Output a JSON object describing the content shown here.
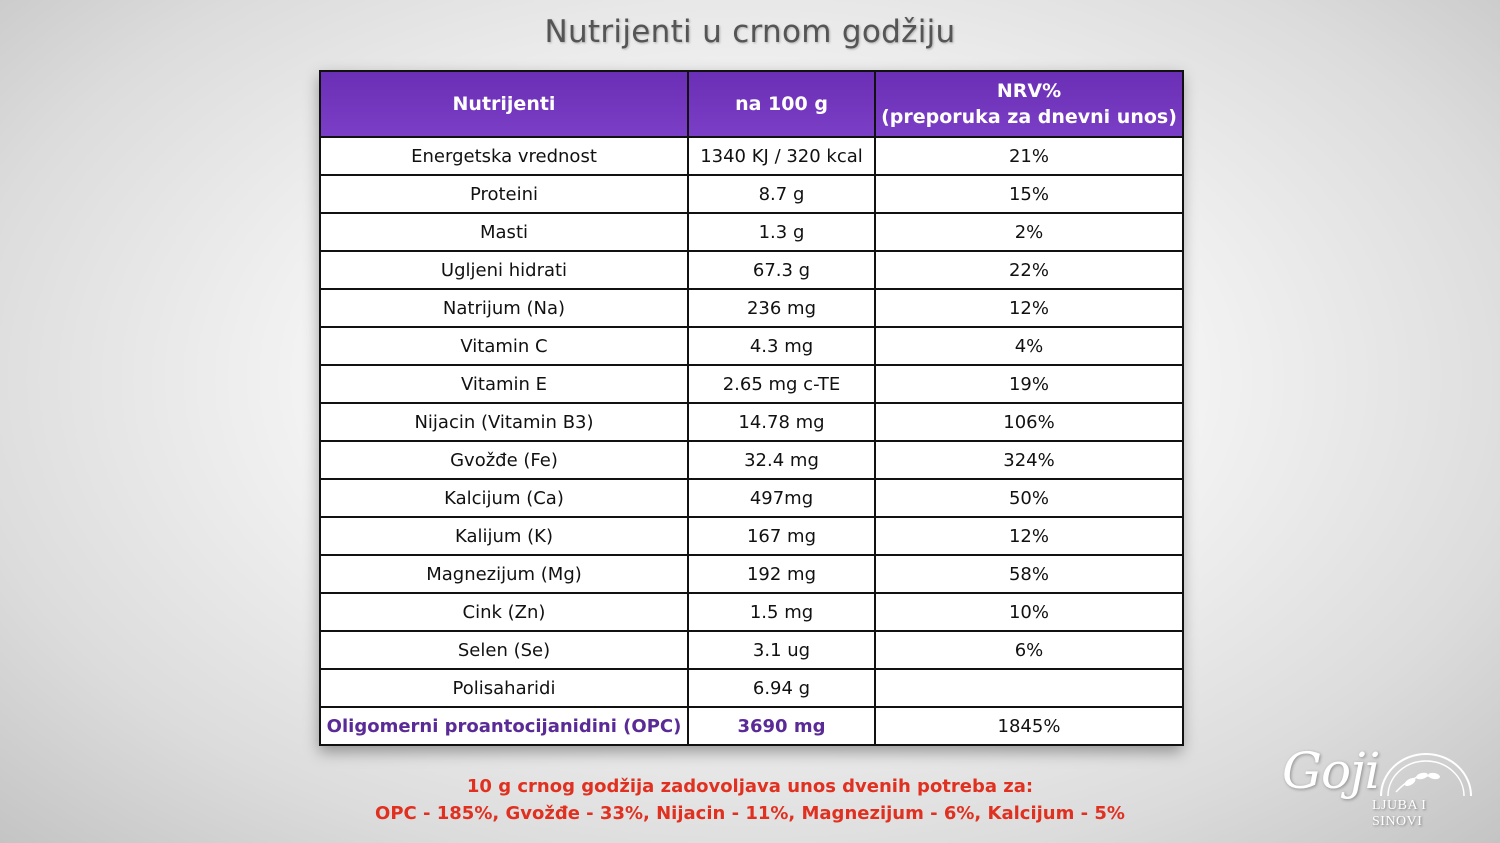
{
  "title": "Nutrijenti u crnom godžiju",
  "table": {
    "headers": [
      "Nutrijenti",
      "na 100 g",
      "NRV%",
      "(preporuka za dnevni unos)"
    ],
    "rows": [
      [
        "Energetska vrednost",
        "1340 KJ / 320 kcal",
        "21%"
      ],
      [
        "Proteini",
        "8.7 g",
        "15%"
      ],
      [
        "Masti",
        "1.3 g",
        "2%"
      ],
      [
        "Ugljeni hidrati",
        "67.3 g",
        "22%"
      ],
      [
        "Natrijum (Na)",
        "236 mg",
        "12%"
      ],
      [
        "Vitamin C",
        "4.3 mg",
        "4%"
      ],
      [
        "Vitamin E",
        "2.65 mg c-TE",
        "19%"
      ],
      [
        "Nijacin (Vitamin B3)",
        "14.78 mg",
        "106%"
      ],
      [
        "Gvožđe (Fe)",
        "32.4 mg",
        "324%"
      ],
      [
        "Kalcijum (Ca)",
        "497mg",
        "50%"
      ],
      [
        "Kalijum (K)",
        "167 mg",
        "12%"
      ],
      [
        "Magnezijum (Mg)",
        "192 mg",
        "58%"
      ],
      [
        "Cink (Zn)",
        "1.5 mg",
        "10%"
      ],
      [
        "Selen (Se)",
        "3.1 ug",
        "6%"
      ],
      [
        "Polisaharidi",
        "6.94 g",
        ""
      ],
      [
        "Oligomerni proantocijanidini (OPC)",
        "3690 mg",
        "1845%"
      ]
    ]
  },
  "footer": {
    "line1": "10 g crnog godžija zadovoljava unos dvenih potreba za:",
    "line2": "OPC - 185%, Gvožđe - 33%, Nijacin - 11%, Magnezijum - 6%, Kalcijum - 5%"
  },
  "logo": {
    "script": "Goji",
    "subtitle": "LJUBA I SINOVI",
    "color": "#ffffff"
  },
  "colors": {
    "header_bg": "#7236bd",
    "highlight_text": "#5a2a96",
    "footer_text": "#e03020"
  }
}
